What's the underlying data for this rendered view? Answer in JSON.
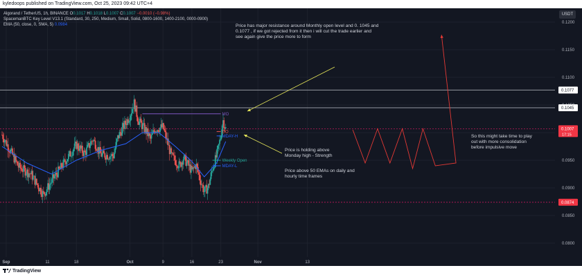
{
  "header": {
    "publisher": "kyledoops published on TradingView.com, Oct 25, 2023 09:42 UTC+4"
  },
  "legend": {
    "symbol": "Algorand / TetherUS, 1h, BINANCE",
    "o_label": "O",
    "o": "0.1017",
    "h_label": "H",
    "h": "0.1018",
    "l_label": "L",
    "l": "0.1007",
    "c_label": "C",
    "c": "0.1007",
    "change": "−0.0010 (−0.98%)",
    "indicator1": "SpacemanBTC Key Level V13.1 (Standard, 30, 250, Medium, Small, Solid, 0800-1600, 1400-2100, 0000-0900)",
    "indicator2": "EMA (50, close, 0, SMA, 5)",
    "indicator2_value": "0.0984"
  },
  "currency_button": "USDT",
  "annotations": {
    "note1": "Price has major resistance around Monthly open level  and 0. 1045 and 0.1077 , if we got rejected from it then i will cut the trade earlier and see again give the price more to form",
    "note2": "Price is holding above Monday high - Strength",
    "note3": "Price above 50 EMAs on daily and hourly time frames",
    "note4": "So this might take time to play out with more consolidation before impulsive move"
  },
  "price_tags": {
    "line_upper": "0.1077",
    "line_lower": "0.1045",
    "current_price": "0.1007",
    "countdown": "17:15",
    "support": "0.0874"
  },
  "footer": {
    "brand": "TradingView"
  },
  "colors": {
    "background": "#131722",
    "up_candle": "#26a69a",
    "down_candle": "#ef5350",
    "ema": "#2962ff",
    "level_mo": "#7e57c2",
    "level_do": "#ef5350",
    "level_mday": "#2962ff",
    "level_wo": "#26a69a",
    "arrow": "#e8e85a",
    "projection": "#e53935",
    "grid": "#1e222d"
  },
  "chart_data": {
    "type": "candlestick",
    "title": "Algorand / TetherUS, 1h, BINANCE",
    "y_ticks": [
      0.08,
      0.085,
      0.09,
      0.095,
      0.1,
      0.105,
      0.11,
      0.115,
      0.12
    ],
    "y_tick_labels": [
      "0.0800",
      "0.0850",
      "0.0900",
      "0.0950",
      "0.1000",
      "0.1050",
      "0.1100",
      "0.1150",
      "0.1200"
    ],
    "ylim": [
      0.0775,
      0.1225
    ],
    "x_tick_labels": [
      "Sep",
      "11",
      "18",
      "Oct",
      "9",
      "16",
      "23",
      "Nov",
      "13"
    ],
    "x_tick_bold": [
      true,
      false,
      false,
      true,
      false,
      false,
      false,
      true,
      false
    ],
    "x_tick_days": [
      1,
      11,
      18,
      31,
      39,
      46,
      53,
      62,
      74
    ],
    "xlim_days": [
      -0.5,
      134
    ],
    "price_path_days": [
      0,
      4,
      7,
      10,
      12,
      15,
      18,
      20,
      22,
      24,
      27,
      28,
      29,
      31,
      32,
      33,
      35,
      36,
      37,
      39,
      41,
      43,
      44,
      46,
      47,
      48,
      49,
      50,
      51,
      52,
      53,
      53.5,
      54.2
    ],
    "price_path": [
      0.0996,
      0.0938,
      0.0925,
      0.0888,
      0.0912,
      0.0945,
      0.0978,
      0.0962,
      0.0988,
      0.096,
      0.0958,
      0.099,
      0.1005,
      0.1031,
      0.1054,
      0.1022,
      0.1002,
      0.0988,
      0.1006,
      0.101,
      0.0958,
      0.094,
      0.0955,
      0.093,
      0.0942,
      0.0915,
      0.0893,
      0.0902,
      0.0935,
      0.0958,
      0.0993,
      0.1024,
      0.1007
    ],
    "ema50_days": [
      0,
      6,
      12,
      18,
      24,
      30,
      34,
      38,
      42,
      46,
      49,
      52,
      54.2
    ],
    "ema50": [
      0.0975,
      0.0945,
      0.0925,
      0.095,
      0.0968,
      0.098,
      0.1,
      0.1,
      0.0975,
      0.0948,
      0.092,
      0.0945,
      0.0984
    ],
    "levels": [
      {
        "name": "MO",
        "value": 0.1034,
        "from_day": 34,
        "to_day": 53
      },
      {
        "name": "DO",
        "value": 0.1002,
        "from_day": 52,
        "to_day": 53
      },
      {
        "name": "MDAY-H",
        "value": 0.0994,
        "from_day": 52,
        "to_day": 53
      },
      {
        "name": "Weekly Open",
        "value": 0.095,
        "from_day": 51,
        "to_day": 53
      },
      {
        "name": "MDAY-L",
        "value": 0.094,
        "from_day": 51,
        "to_day": 53
      }
    ],
    "horizontal_lines": [
      {
        "label": "0.1077",
        "value": 0.1077,
        "style": "solid"
      },
      {
        "label": "0.1045",
        "value": 0.1045,
        "style": "solid"
      },
      {
        "label": "0.1007",
        "value": 0.1007,
        "style": "dotted"
      },
      {
        "label": "0.0874",
        "value": 0.0874,
        "style": "dotted"
      }
    ],
    "projection_days": [
      85,
      88,
      91,
      94,
      97,
      99.5,
      102,
      105,
      106.5,
      110
    ],
    "projection": [
      0.1005,
      0.0945,
      0.1007,
      0.0945,
      0.1007,
      0.0935,
      0.1007,
      0.094,
      0.1177,
      0.0945
    ],
    "projection_order": [
      0,
      1,
      2,
      3,
      4,
      5,
      6,
      7,
      9,
      8
    ]
  }
}
